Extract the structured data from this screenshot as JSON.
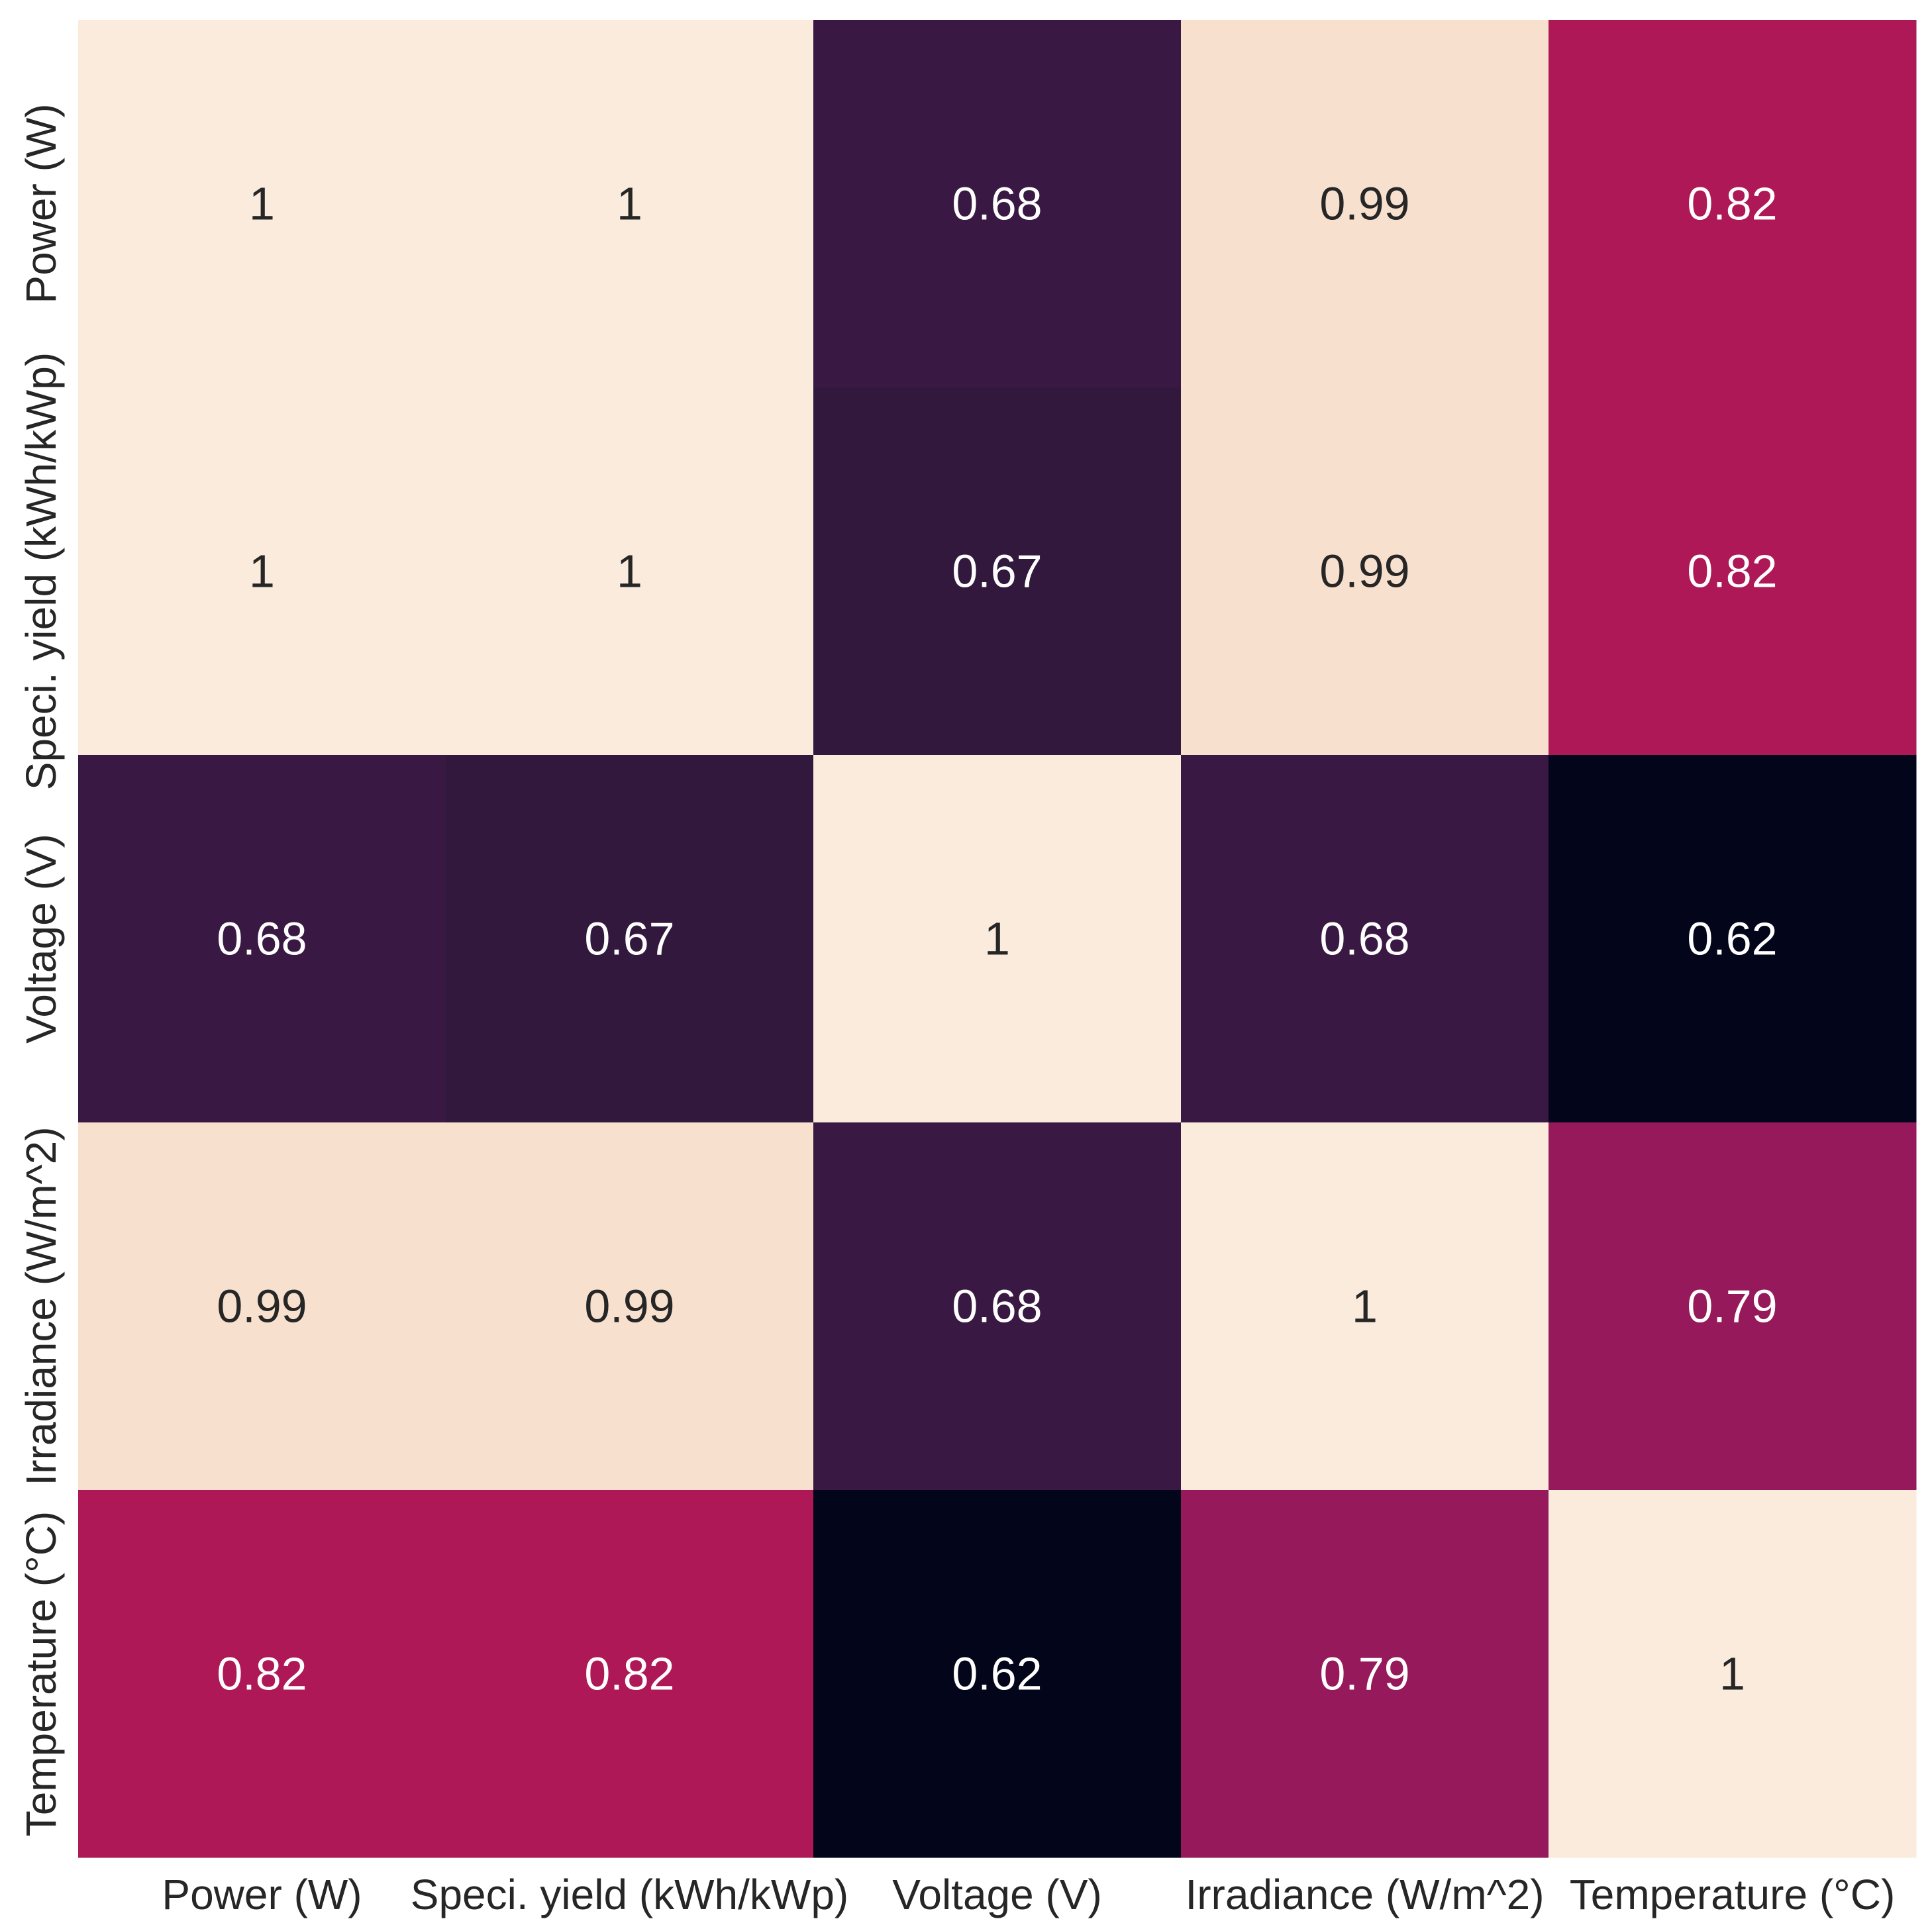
{
  "chart_data": {
    "type": "heatmap",
    "title": "",
    "xlabel": "",
    "ylabel": "",
    "x_categories": [
      "Power (W)",
      "Speci. yield (kWh/kWp)",
      "Voltage (V)",
      "Irradiance (W/m^2)",
      "Temperature (°C)"
    ],
    "y_categories": [
      "Power (W)",
      "Speci. yield (kWh/kWp)",
      "Voltage (V)",
      "Irradiance (W/m^2)",
      "Temperature (°C)"
    ],
    "values": [
      [
        1,
        1,
        0.68,
        0.99,
        0.82
      ],
      [
        1,
        1,
        0.67,
        0.99,
        0.82
      ],
      [
        0.68,
        0.67,
        1,
        0.68,
        0.62
      ],
      [
        0.99,
        0.99,
        0.68,
        1,
        0.79
      ],
      [
        0.82,
        0.82,
        0.62,
        0.79,
        1
      ]
    ],
    "value_labels": [
      [
        "1",
        "1",
        "0.68",
        "0.99",
        "0.82"
      ],
      [
        "1",
        "1",
        "0.67",
        "0.99",
        "0.82"
      ],
      [
        "0.68",
        "0.67",
        "1",
        "0.68",
        "0.62"
      ],
      [
        "0.99",
        "0.99",
        "0.68",
        "1",
        "0.79"
      ],
      [
        "0.82",
        "0.82",
        "0.62",
        "0.79",
        "1"
      ]
    ],
    "colormap": "rocket",
    "vmin": 0.62,
    "vmax": 1,
    "colorbar": false
  }
}
